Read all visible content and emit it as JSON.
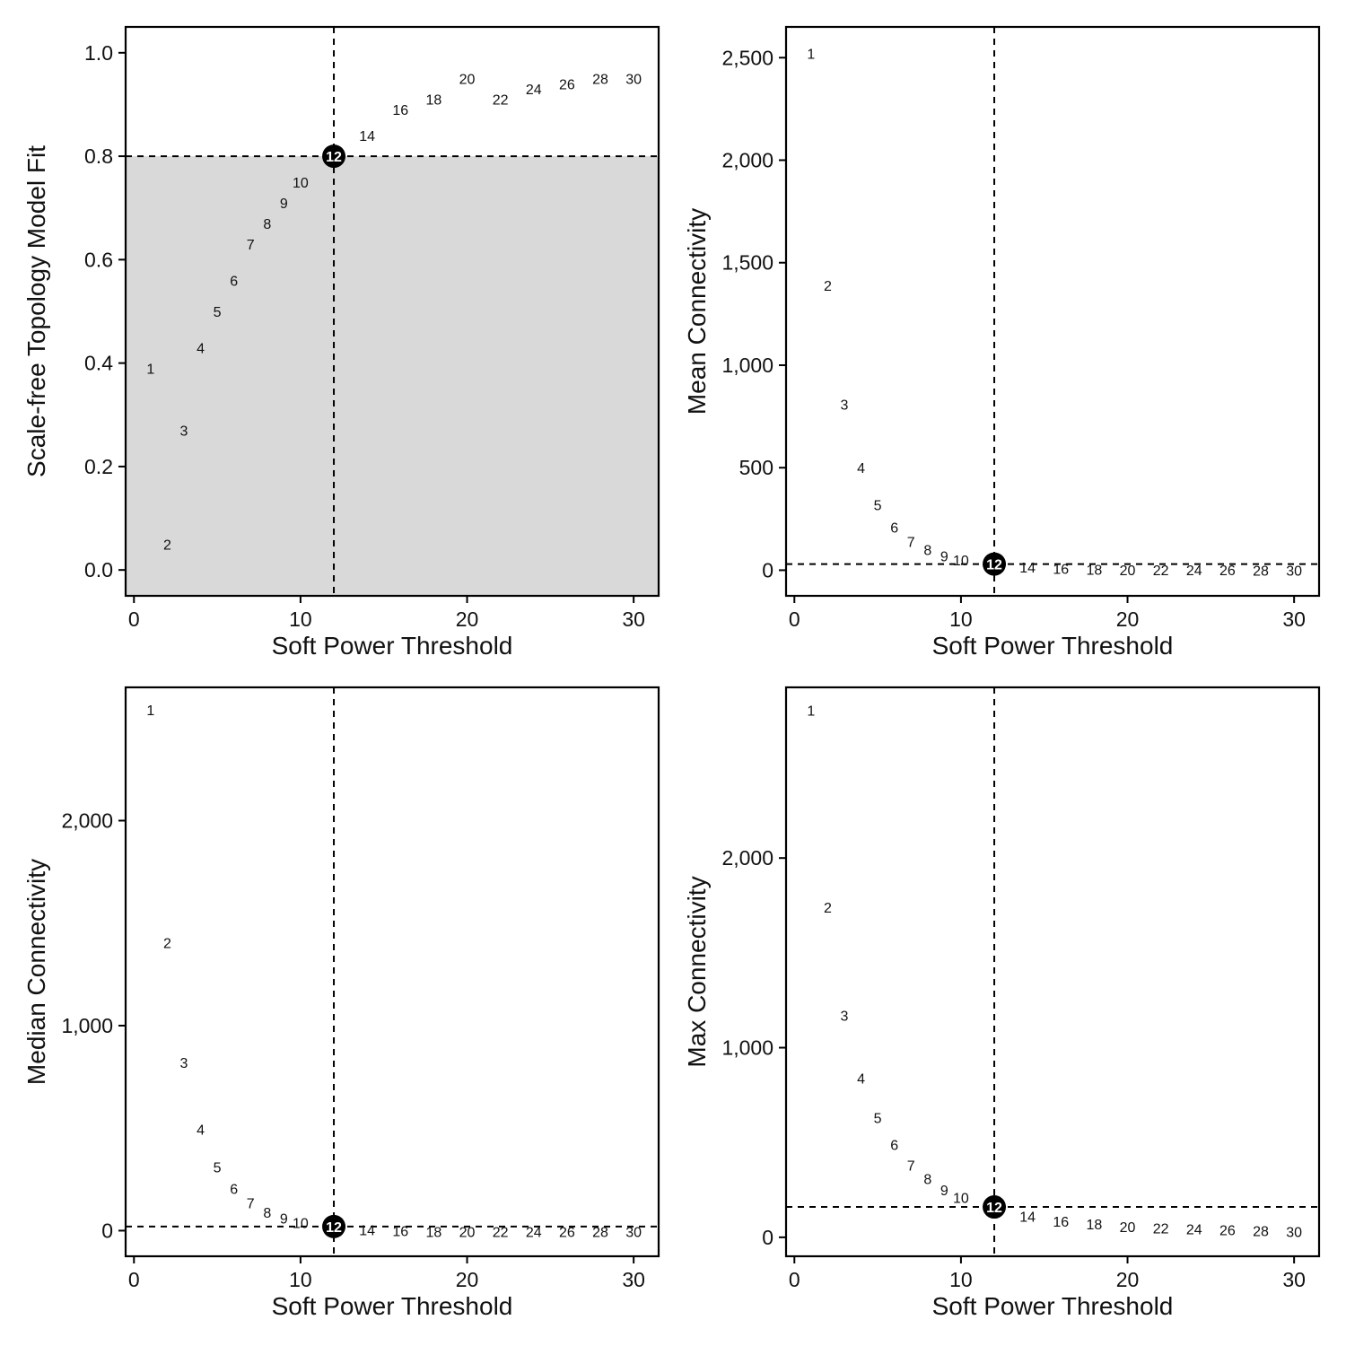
{
  "chart_data": [
    {
      "type": "scatter",
      "xlabel": "Soft Power Threshold",
      "ylabel": "Scale-free Topology Model Fit",
      "xlim": [
        -0.5,
        31.5
      ],
      "ylim": [
        -0.05,
        1.05
      ],
      "xticks": [
        {
          "v": 0,
          "label": "0"
        },
        {
          "v": 10,
          "label": "10"
        },
        {
          "v": 20,
          "label": "20"
        },
        {
          "v": 30,
          "label": "30"
        }
      ],
      "yticks": [
        {
          "v": 0,
          "label": "0.0"
        },
        {
          "v": 0.2,
          "label": "0.2"
        },
        {
          "v": 0.4,
          "label": "0.4"
        },
        {
          "v": 0.6,
          "label": "0.6"
        },
        {
          "v": 0.8,
          "label": "0.8"
        },
        {
          "v": 1.0,
          "label": "1.0"
        }
      ],
      "vline": 12,
      "hline": 0.8,
      "shade_below_hline": true,
      "shade_color": "#d9d9d9",
      "highlight": 12,
      "points": [
        {
          "x": 1,
          "y": 0.39,
          "label": "1"
        },
        {
          "x": 2,
          "y": 0.05,
          "label": "2"
        },
        {
          "x": 3,
          "y": 0.27,
          "label": "3"
        },
        {
          "x": 4,
          "y": 0.43,
          "label": "4"
        },
        {
          "x": 5,
          "y": 0.5,
          "label": "5"
        },
        {
          "x": 6,
          "y": 0.56,
          "label": "6"
        },
        {
          "x": 7,
          "y": 0.63,
          "label": "7"
        },
        {
          "x": 8,
          "y": 0.67,
          "label": "8"
        },
        {
          "x": 9,
          "y": 0.71,
          "label": "9"
        },
        {
          "x": 10,
          "y": 0.75,
          "label": "10"
        },
        {
          "x": 12,
          "y": 0.8,
          "label": "12"
        },
        {
          "x": 14,
          "y": 0.84,
          "label": "14"
        },
        {
          "x": 16,
          "y": 0.89,
          "label": "16"
        },
        {
          "x": 18,
          "y": 0.91,
          "label": "18"
        },
        {
          "x": 20,
          "y": 0.95,
          "label": "20"
        },
        {
          "x": 22,
          "y": 0.91,
          "label": "22"
        },
        {
          "x": 24,
          "y": 0.93,
          "label": "24"
        },
        {
          "x": 26,
          "y": 0.94,
          "label": "26"
        },
        {
          "x": 28,
          "y": 0.95,
          "label": "28"
        },
        {
          "x": 30,
          "y": 0.95,
          "label": "30"
        }
      ]
    },
    {
      "type": "scatter",
      "xlabel": "Soft Power Threshold",
      "ylabel": "Mean Connectivity",
      "xlim": [
        -0.5,
        31.5
      ],
      "ylim": [
        -125,
        2650
      ],
      "xticks": [
        {
          "v": 0,
          "label": "0"
        },
        {
          "v": 10,
          "label": "10"
        },
        {
          "v": 20,
          "label": "20"
        },
        {
          "v": 30,
          "label": "30"
        }
      ],
      "yticks": [
        {
          "v": 0,
          "label": "0"
        },
        {
          "v": 500,
          "label": "500"
        },
        {
          "v": 1000,
          "label": "1,000"
        },
        {
          "v": 1500,
          "label": "1,500"
        },
        {
          "v": 2000,
          "label": "2,000"
        },
        {
          "v": 2500,
          "label": "2,500"
        }
      ],
      "vline": 12,
      "hline": 30,
      "highlight": 12,
      "points": [
        {
          "x": 1,
          "y": 2520,
          "label": "1"
        },
        {
          "x": 2,
          "y": 1390,
          "label": "2"
        },
        {
          "x": 3,
          "y": 810,
          "label": "3"
        },
        {
          "x": 4,
          "y": 500,
          "label": "4"
        },
        {
          "x": 5,
          "y": 320,
          "label": "5"
        },
        {
          "x": 6,
          "y": 210,
          "label": "6"
        },
        {
          "x": 7,
          "y": 140,
          "label": "7"
        },
        {
          "x": 8,
          "y": 100,
          "label": "8"
        },
        {
          "x": 9,
          "y": 70,
          "label": "9"
        },
        {
          "x": 10,
          "y": 50,
          "label": "10"
        },
        {
          "x": 12,
          "y": 30,
          "label": "12"
        },
        {
          "x": 14,
          "y": 15,
          "label": "14"
        },
        {
          "x": 16,
          "y": 8,
          "label": "16"
        },
        {
          "x": 18,
          "y": 5,
          "label": "18"
        },
        {
          "x": 20,
          "y": 3,
          "label": "20"
        },
        {
          "x": 22,
          "y": 2,
          "label": "22"
        },
        {
          "x": 24,
          "y": 1,
          "label": "24"
        },
        {
          "x": 26,
          "y": 1,
          "label": "26"
        },
        {
          "x": 28,
          "y": 0,
          "label": "28"
        },
        {
          "x": 30,
          "y": 0,
          "label": "30"
        }
      ]
    },
    {
      "type": "scatter",
      "xlabel": "Soft Power Threshold",
      "ylabel": "Median Connectivity",
      "xlim": [
        -0.5,
        31.5
      ],
      "ylim": [
        -125,
        2650
      ],
      "xticks": [
        {
          "v": 0,
          "label": "0"
        },
        {
          "v": 10,
          "label": "10"
        },
        {
          "v": 20,
          "label": "20"
        },
        {
          "v": 30,
          "label": "30"
        }
      ],
      "yticks": [
        {
          "v": 0,
          "label": "0"
        },
        {
          "v": 1000,
          "label": "1,000"
        },
        {
          "v": 2000,
          "label": "2,000"
        }
      ],
      "vline": 12,
      "hline": 20,
      "highlight": 12,
      "points": [
        {
          "x": 1,
          "y": 2540,
          "label": "1"
        },
        {
          "x": 2,
          "y": 1405,
          "label": "2"
        },
        {
          "x": 3,
          "y": 820,
          "label": "3"
        },
        {
          "x": 4,
          "y": 495,
          "label": "4"
        },
        {
          "x": 5,
          "y": 310,
          "label": "5"
        },
        {
          "x": 6,
          "y": 205,
          "label": "6"
        },
        {
          "x": 7,
          "y": 135,
          "label": "7"
        },
        {
          "x": 8,
          "y": 90,
          "label": "8"
        },
        {
          "x": 9,
          "y": 60,
          "label": "9"
        },
        {
          "x": 10,
          "y": 40,
          "label": "10"
        },
        {
          "x": 12,
          "y": 20,
          "label": "12"
        },
        {
          "x": 14,
          "y": 5,
          "label": "14"
        },
        {
          "x": 16,
          "y": 0,
          "label": "16"
        },
        {
          "x": 18,
          "y": -5,
          "label": "18"
        },
        {
          "x": 20,
          "y": -5,
          "label": "20"
        },
        {
          "x": 22,
          "y": -5,
          "label": "22"
        },
        {
          "x": 24,
          "y": -5,
          "label": "24"
        },
        {
          "x": 26,
          "y": -5,
          "label": "26"
        },
        {
          "x": 28,
          "y": -5,
          "label": "28"
        },
        {
          "x": 30,
          "y": -5,
          "label": "30"
        }
      ]
    },
    {
      "type": "scatter",
      "xlabel": "Soft Power Threshold",
      "ylabel": "Max Connectivity",
      "xlim": [
        -0.5,
        31.5
      ],
      "ylim": [
        -100,
        2900
      ],
      "xticks": [
        {
          "v": 0,
          "label": "0"
        },
        {
          "v": 10,
          "label": "10"
        },
        {
          "v": 20,
          "label": "20"
        },
        {
          "v": 30,
          "label": "30"
        }
      ],
      "yticks": [
        {
          "v": 0,
          "label": "0"
        },
        {
          "v": 1000,
          "label": "1,000"
        },
        {
          "v": 2000,
          "label": "2,000"
        }
      ],
      "vline": 12,
      "hline": 160,
      "highlight": 12,
      "points": [
        {
          "x": 1,
          "y": 2780,
          "label": "1"
        },
        {
          "x": 2,
          "y": 1740,
          "label": "2"
        },
        {
          "x": 3,
          "y": 1170,
          "label": "3"
        },
        {
          "x": 4,
          "y": 840,
          "label": "4"
        },
        {
          "x": 5,
          "y": 630,
          "label": "5"
        },
        {
          "x": 6,
          "y": 490,
          "label": "6"
        },
        {
          "x": 7,
          "y": 380,
          "label": "7"
        },
        {
          "x": 8,
          "y": 310,
          "label": "8"
        },
        {
          "x": 9,
          "y": 250,
          "label": "9"
        },
        {
          "x": 10,
          "y": 210,
          "label": "10"
        },
        {
          "x": 12,
          "y": 160,
          "label": "12"
        },
        {
          "x": 14,
          "y": 110,
          "label": "14"
        },
        {
          "x": 16,
          "y": 85,
          "label": "16"
        },
        {
          "x": 18,
          "y": 70,
          "label": "18"
        },
        {
          "x": 20,
          "y": 55,
          "label": "20"
        },
        {
          "x": 22,
          "y": 50,
          "label": "22"
        },
        {
          "x": 24,
          "y": 45,
          "label": "24"
        },
        {
          "x": 26,
          "y": 40,
          "label": "26"
        },
        {
          "x": 28,
          "y": 35,
          "label": "28"
        },
        {
          "x": 30,
          "y": 30,
          "label": "30"
        }
      ]
    }
  ]
}
